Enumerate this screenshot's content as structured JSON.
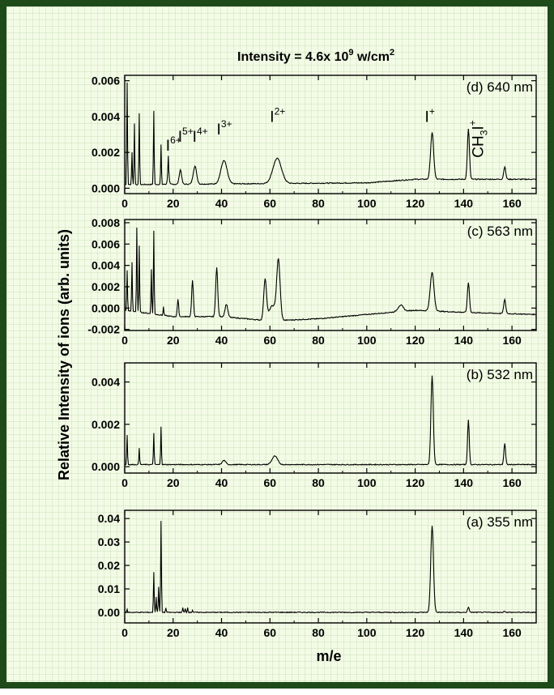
{
  "title": "Intensity = 4.6x 10",
  "title_exp": "9",
  "title_unit": " w/cm",
  "title_unit_exp": "2",
  "xlabel": "m/e",
  "ylabel": "Relative Intensity of ions (arb. units)",
  "colors": {
    "frame": "#1f4a1a",
    "background": "#f3fbe6",
    "line": "#000000"
  },
  "chart_data": [
    {
      "type": "line",
      "label": "(d) 640 nm",
      "xlim": [
        0,
        170
      ],
      "ylim": [
        -0.0003,
        0.0063
      ],
      "x_ticks": [
        0,
        20,
        40,
        60,
        80,
        100,
        120,
        140,
        160
      ],
      "y_ticks": [
        0.0,
        0.002,
        0.004,
        0.006
      ],
      "y_tick_labels": [
        "0.000",
        "0.002",
        "0.004",
        "0.006"
      ],
      "baseline": [
        [
          0,
          0.0002
        ],
        [
          100,
          0.0003
        ],
        [
          120,
          0.0005
        ],
        [
          170,
          0.0005
        ]
      ],
      "spikes": [
        [
          1,
          0.0057
        ],
        [
          3,
          0.0018
        ],
        [
          4,
          0.0034
        ],
        [
          6,
          0.004
        ],
        [
          12,
          0.0041
        ],
        [
          15,
          0.0022
        ],
        [
          18,
          0.0011
        ]
      ],
      "peaks": [
        [
          18,
          0.0005,
          0.5
        ],
        [
          23,
          0.0008,
          0.7
        ],
        [
          29,
          0.001,
          1.0
        ],
        [
          41,
          0.0013,
          1.8
        ],
        [
          63,
          0.0014,
          2.5
        ],
        [
          127,
          0.0026,
          0.9
        ],
        [
          142,
          0.0028,
          0.6
        ],
        [
          157,
          0.0007,
          0.6
        ]
      ],
      "peak_labels": [
        {
          "base": "I",
          "sup": "6+",
          "x": 17,
          "y": 0.0021
        },
        {
          "base": "I",
          "sup": "5+",
          "x": 22,
          "y": 0.0026
        },
        {
          "base": "I",
          "sup": "4+",
          "x": 28,
          "y": 0.0026
        },
        {
          "base": "I",
          "sup": "3+",
          "x": 38,
          "y": 0.003
        },
        {
          "base": "I",
          "sup": "2+",
          "x": 60,
          "y": 0.0037
        },
        {
          "base": "I",
          "sup": "+",
          "x": 124,
          "y": 0.0037
        }
      ],
      "ch3i_label": {
        "text": "CH",
        "sub": "3",
        "tail": "I",
        "sup": "+"
      }
    },
    {
      "type": "line",
      "label": "(c) 563 nm",
      "xlim": [
        0,
        170
      ],
      "ylim": [
        -0.0021,
        0.0083
      ],
      "x_ticks": [
        0,
        20,
        40,
        60,
        80,
        100,
        120,
        140,
        160
      ],
      "y_ticks": [
        -0.002,
        0.0,
        0.002,
        0.004,
        0.006,
        0.008
      ],
      "y_tick_labels": [
        "-0.002",
        "0.000",
        "0.002",
        "0.004",
        "0.006",
        "0.008"
      ],
      "baseline": [
        [
          0,
          -0.0002
        ],
        [
          20,
          -0.0008
        ],
        [
          40,
          -0.0008
        ],
        [
          60,
          -0.0012
        ],
        [
          80,
          -0.001
        ],
        [
          100,
          -0.0006
        ],
        [
          120,
          -0.0002
        ],
        [
          140,
          -0.0004
        ],
        [
          170,
          -0.0006
        ]
      ],
      "spikes": [
        [
          1,
          0.0038
        ],
        [
          3,
          0.0046
        ],
        [
          5,
          0.0079
        ],
        [
          6,
          0.0062
        ],
        [
          11,
          0.0042
        ],
        [
          12,
          0.0078
        ],
        [
          16,
          0.0008
        ]
      ],
      "peaks": [
        [
          22,
          0.0016,
          0.4
        ],
        [
          28,
          0.0034,
          0.5
        ],
        [
          38,
          0.0046,
          0.6
        ],
        [
          42,
          0.0012,
          0.8
        ],
        [
          58,
          0.0038,
          0.8
        ],
        [
          63.5,
          0.0055,
          1.0
        ],
        [
          61,
          0.0014,
          2.0
        ],
        [
          114,
          0.0006,
          1.5
        ],
        [
          127,
          0.0036,
          1.1
        ],
        [
          142,
          0.0028,
          0.6
        ],
        [
          157,
          0.0013,
          0.6
        ]
      ]
    },
    {
      "type": "line",
      "label": "(b) 532 nm",
      "xlim": [
        0,
        170
      ],
      "ylim": [
        -0.0003,
        0.0049
      ],
      "x_ticks": [
        0,
        20,
        40,
        60,
        80,
        100,
        120,
        140,
        160
      ],
      "y_ticks": [
        0.0,
        0.002,
        0.004
      ],
      "y_tick_labels": [
        "0.000",
        "0.002",
        "0.004"
      ],
      "baseline": [
        [
          0,
          0.0001
        ],
        [
          120,
          0.0001
        ],
        [
          170,
          0.0001
        ]
      ],
      "spikes": [
        [
          1,
          0.0014
        ],
        [
          6,
          0.0008
        ],
        [
          12,
          0.0015
        ],
        [
          15,
          0.0018
        ]
      ],
      "peaks": [
        [
          41,
          0.0002,
          1.0
        ],
        [
          62,
          0.0004,
          1.6
        ],
        [
          127,
          0.0042,
          0.7
        ],
        [
          142,
          0.0021,
          0.5
        ],
        [
          157,
          0.001,
          0.5
        ]
      ]
    },
    {
      "type": "line",
      "label": "(a) 355 nm",
      "xlim": [
        0,
        170
      ],
      "ylim": [
        -0.0045,
        0.0435
      ],
      "x_ticks": [
        0,
        20,
        40,
        60,
        80,
        100,
        120,
        140,
        160
      ],
      "y_ticks": [
        0.0,
        0.01,
        0.02,
        0.03,
        0.04
      ],
      "y_tick_labels": [
        "0.00",
        "0.01",
        "0.02",
        "0.03",
        "0.04"
      ],
      "baseline": [
        [
          0,
          0.0
        ],
        [
          170,
          0.0
        ]
      ],
      "spikes": [
        [
          1,
          0.0012
        ],
        [
          12,
          0.017
        ],
        [
          13,
          0.0065
        ],
        [
          14,
          0.011
        ],
        [
          15,
          0.039
        ],
        [
          17,
          0.002
        ],
        [
          24,
          0.002
        ],
        [
          25,
          0.0015
        ],
        [
          26,
          0.002
        ],
        [
          28,
          0.001
        ]
      ],
      "peaks": [
        [
          127,
          0.037,
          0.8
        ],
        [
          142,
          0.002,
          0.5
        ],
        [
          157,
          0.0005,
          0.5
        ]
      ]
    }
  ]
}
